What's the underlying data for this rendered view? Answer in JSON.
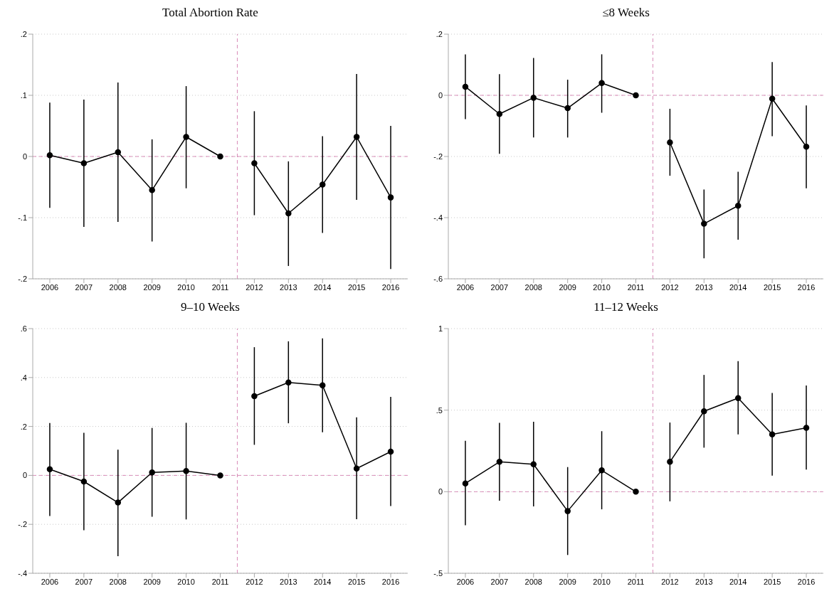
{
  "chart_data": [
    {
      "type": "line",
      "title": "Total Abortion Rate",
      "xlim": [
        2005.5,
        2016.5
      ],
      "xticks": [
        2006,
        2007,
        2008,
        2009,
        2010,
        2011,
        2012,
        2013,
        2014,
        2015,
        2016
      ],
      "ylim": [
        -0.2,
        0.2
      ],
      "yticks": [
        {
          "value": -0.2,
          "label": "-.2"
        },
        {
          "value": -0.1,
          "label": "-.1"
        },
        {
          "value": 0,
          "label": "0"
        },
        {
          "value": 0.1,
          "label": ".1"
        },
        {
          "value": 0.2,
          "label": ".2"
        }
      ],
      "grid": "y",
      "legend": false,
      "marker": "circle",
      "line_style": "solid",
      "series": [
        {
          "color": "#000000",
          "x": [
            2006,
            2007,
            2008,
            2009,
            2010,
            2011
          ],
          "values": [
            0.002,
            -0.011,
            0.007,
            -0.055,
            0.032,
            0
          ],
          "errors": [
            [
              -0.084,
              0.088
            ],
            [
              -0.115,
              0.093
            ],
            [
              -0.107,
              0.121
            ],
            [
              -0.139,
              0.028
            ],
            [
              -0.052,
              0.115
            ],
            null
          ]
        },
        {
          "color": "#000000",
          "x": [
            2012,
            2013,
            2014,
            2015,
            2016
          ],
          "values": [
            -0.011,
            -0.093,
            -0.046,
            0.032,
            -0.067
          ],
          "errors": [
            [
              -0.096,
              0.074
            ],
            [
              -0.179,
              -0.008
            ],
            [
              -0.125,
              0.033
            ],
            [
              -0.071,
              0.135
            ],
            [
              -0.184,
              0.05
            ]
          ]
        }
      ],
      "ref_lines": [
        {
          "axis": "y",
          "value": 0,
          "color": "#d98cb8",
          "line_style": "dashed"
        },
        {
          "axis": "x",
          "value": 2011.5,
          "color": "#d98cb8",
          "line_style": "dashed"
        }
      ]
    },
    {
      "type": "line",
      "title": "≤8 Weeks",
      "xlim": [
        2005.5,
        2016.5
      ],
      "xticks": [
        2006,
        2007,
        2008,
        2009,
        2010,
        2011,
        2012,
        2013,
        2014,
        2015,
        2016
      ],
      "ylim": [
        -0.6,
        0.2
      ],
      "yticks": [
        {
          "value": -0.6,
          "label": "-.6"
        },
        {
          "value": -0.4,
          "label": "-.4"
        },
        {
          "value": -0.2,
          "label": "-.2"
        },
        {
          "value": 0,
          "label": "0"
        },
        {
          "value": 0.2,
          "label": ".2"
        }
      ],
      "grid": "y",
      "legend": false,
      "marker": "circle",
      "line_style": "solid",
      "series": [
        {
          "color": "#000000",
          "x": [
            2006,
            2007,
            2008,
            2009,
            2010,
            2011
          ],
          "values": [
            0.028,
            -0.061,
            -0.008,
            -0.042,
            0.04,
            0
          ],
          "errors": [
            [
              -0.078,
              0.134
            ],
            [
              -0.191,
              0.069
            ],
            [
              -0.138,
              0.122
            ],
            [
              -0.138,
              0.051
            ],
            [
              -0.057,
              0.134
            ],
            null
          ]
        },
        {
          "color": "#000000",
          "x": [
            2012,
            2013,
            2014,
            2015,
            2016
          ],
          "values": [
            -0.154,
            -0.42,
            -0.361,
            -0.011,
            -0.168
          ],
          "errors": [
            [
              -0.263,
              -0.044
            ],
            [
              -0.533,
              -0.308
            ],
            [
              -0.472,
              -0.25
            ],
            [
              -0.134,
              0.109
            ],
            [
              -0.304,
              -0.033
            ]
          ]
        }
      ],
      "ref_lines": [
        {
          "axis": "y",
          "value": 0,
          "color": "#d98cb8",
          "line_style": "dashed"
        },
        {
          "axis": "x",
          "value": 2011.5,
          "color": "#d98cb8",
          "line_style": "dashed"
        }
      ]
    },
    {
      "type": "line",
      "title": "9–10 Weeks",
      "xlim": [
        2005.5,
        2016.5
      ],
      "xticks": [
        2006,
        2007,
        2008,
        2009,
        2010,
        2011,
        2012,
        2013,
        2014,
        2015,
        2016
      ],
      "ylim": [
        -0.4,
        0.6
      ],
      "yticks": [
        {
          "value": -0.4,
          "label": "-.4"
        },
        {
          "value": -0.2,
          "label": "-.2"
        },
        {
          "value": 0,
          "label": "0"
        },
        {
          "value": 0.2,
          "label": ".2"
        },
        {
          "value": 0.4,
          "label": ".4"
        },
        {
          "value": 0.6,
          "label": ".6"
        }
      ],
      "grid": "y",
      "legend": false,
      "marker": "circle",
      "line_style": "solid",
      "series": [
        {
          "color": "#000000",
          "x": [
            2006,
            2007,
            2008,
            2009,
            2010,
            2011
          ],
          "values": [
            0.025,
            -0.025,
            -0.111,
            0.012,
            0.018,
            0
          ],
          "errors": [
            [
              -0.166,
              0.214
            ],
            [
              -0.224,
              0.174
            ],
            [
              -0.33,
              0.105
            ],
            [
              -0.169,
              0.194
            ],
            [
              -0.18,
              0.215
            ],
            null
          ]
        },
        {
          "color": "#000000",
          "x": [
            2012,
            2013,
            2014,
            2015,
            2016
          ],
          "values": [
            0.324,
            0.38,
            0.368,
            0.028,
            0.097
          ],
          "errors": [
            [
              0.125,
              0.524
            ],
            [
              0.213,
              0.548
            ],
            [
              0.176,
              0.56
            ],
            [
              -0.179,
              0.237
            ],
            [
              -0.125,
              0.321
            ]
          ]
        }
      ],
      "ref_lines": [
        {
          "axis": "y",
          "value": 0,
          "color": "#d98cb8",
          "line_style": "dashed"
        },
        {
          "axis": "x",
          "value": 2011.5,
          "color": "#d98cb8",
          "line_style": "dashed"
        }
      ]
    },
    {
      "type": "line",
      "title": "11–12 Weeks",
      "xlim": [
        2005.5,
        2016.5
      ],
      "xticks": [
        2006,
        2007,
        2008,
        2009,
        2010,
        2011,
        2012,
        2013,
        2014,
        2015,
        2016
      ],
      "ylim": [
        -0.5,
        1
      ],
      "yticks": [
        {
          "value": -0.5,
          "label": "-.5"
        },
        {
          "value": 0,
          "label": "0"
        },
        {
          "value": 0.5,
          "label": ".5"
        },
        {
          "value": 1,
          "label": "1"
        }
      ],
      "grid": "y",
      "legend": false,
      "marker": "circle",
      "line_style": "solid",
      "series": [
        {
          "color": "#000000",
          "x": [
            2006,
            2007,
            2008,
            2009,
            2010,
            2011
          ],
          "values": [
            0.051,
            0.183,
            0.168,
            -0.119,
            0.131,
            0
          ],
          "errors": [
            [
              -0.206,
              0.312
            ],
            [
              -0.055,
              0.422
            ],
            [
              -0.09,
              0.429
            ],
            [
              -0.388,
              0.151
            ],
            [
              -0.108,
              0.371
            ],
            null
          ]
        },
        {
          "color": "#000000",
          "x": [
            2012,
            2013,
            2014,
            2015,
            2016
          ],
          "values": [
            0.183,
            0.493,
            0.574,
            0.351,
            0.392
          ],
          "errors": [
            [
              -0.059,
              0.424
            ],
            [
              0.27,
              0.716
            ],
            [
              0.351,
              0.801
            ],
            [
              0.098,
              0.605
            ],
            [
              0.135,
              0.651
            ]
          ]
        }
      ],
      "ref_lines": [
        {
          "axis": "y",
          "value": 0,
          "color": "#d98cb8",
          "line_style": "dashed"
        },
        {
          "axis": "x",
          "value": 2011.5,
          "color": "#d98cb8",
          "line_style": "dashed"
        }
      ]
    }
  ]
}
